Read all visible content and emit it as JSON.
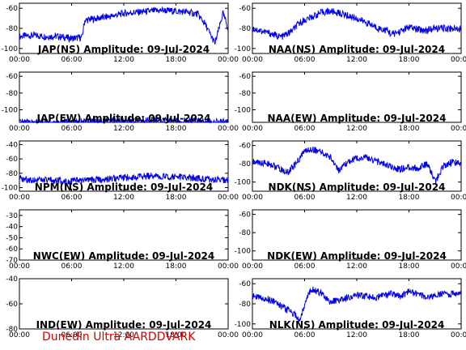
{
  "footer": {
    "credit": "Dunedin Ultra AARDDVARK"
  },
  "colors": {
    "trace": "#0000ee",
    "credit": "#d00000",
    "axis": "#000000"
  },
  "chart_data": [
    {
      "type": "line",
      "title": "JAP(NS) Amplitude: 09-Jul-2024",
      "x_ticks": [
        "00:00",
        "06:00",
        "12:00",
        "18:00",
        "00:00"
      ],
      "xlim": [
        0,
        24
      ],
      "ylim": [
        -105,
        -55
      ],
      "y_ticks": [
        -100,
        -80,
        -60
      ],
      "series": [
        {
          "x": [
            0,
            1.5,
            3,
            4.5,
            6,
            7.2,
            7.5,
            9,
            10.5,
            12,
            13.5,
            15,
            16.5,
            18,
            19.5,
            20.5,
            21.3,
            22,
            22.5,
            23.4,
            24
          ],
          "y": [
            -88,
            -87,
            -88,
            -88,
            -90,
            -89,
            -72,
            -70,
            -68,
            -65,
            -64,
            -63,
            -62,
            -63,
            -64,
            -66,
            -75,
            -87,
            -95,
            -65,
            -80
          ]
        }
      ]
    },
    {
      "type": "line",
      "title": "NAA(NS) Amplitude: 09-Jul-2024",
      "x_ticks": [
        "00:00",
        "06:00",
        "12:00",
        "18:00",
        "00:00"
      ],
      "xlim": [
        0,
        24
      ],
      "ylim": [
        -105,
        -55
      ],
      "y_ticks": [
        -100,
        -80,
        -60
      ],
      "series": [
        {
          "x": [
            0,
            2,
            3,
            3.5,
            4.5,
            5.5,
            7,
            8,
            9,
            10,
            12,
            13.5,
            14.5,
            15.5,
            16,
            17,
            18,
            19,
            20,
            21,
            22,
            24
          ],
          "y": [
            -80,
            -85,
            -88,
            -88,
            -83,
            -74,
            -68,
            -64,
            -63,
            -65,
            -70,
            -76,
            -80,
            -82,
            -86,
            -83,
            -79,
            -81,
            -82,
            -80,
            -80,
            -80
          ]
        }
      ]
    },
    {
      "type": "line",
      "title": "JAP(EW) Amplitude: 09-Jul-2024",
      "x_ticks": [
        "00:00",
        "06:00",
        "12:00",
        "18:00",
        "00:00"
      ],
      "xlim": [
        0,
        24
      ],
      "ylim": [
        -115,
        -55
      ],
      "y_ticks": [
        -100,
        -80,
        -60
      ],
      "series": [
        {
          "x": [
            0,
            4,
            8,
            12,
            16,
            20,
            24
          ],
          "y": [
            -115,
            -115,
            -114,
            -113,
            -112,
            -114,
            -115
          ]
        }
      ]
    },
    {
      "type": "line",
      "title": "NAA(EW) Amplitude: 09-Jul-2024",
      "x_ticks": [
        "00:00",
        "06:00",
        "12:00",
        "18:00",
        "00:00"
      ],
      "xlim": [
        0,
        24
      ],
      "ylim": [
        -115,
        -55
      ],
      "y_ticks": [
        -100,
        -80,
        -60
      ],
      "series": []
    },
    {
      "type": "line",
      "title": "NPM(NS) Amplitude: 09-Jul-2024",
      "x_ticks": [
        "00:00",
        "06:00",
        "12:00",
        "18:00",
        "00:00"
      ],
      "xlim": [
        0,
        24
      ],
      "ylim": [
        -105,
        -35
      ],
      "y_ticks": [
        -100,
        -80,
        -60,
        -40
      ],
      "series": [
        {
          "x": [
            0,
            3,
            6,
            9,
            12,
            15,
            18,
            21,
            24
          ],
          "y": [
            -88,
            -90,
            -91,
            -89,
            -86,
            -84,
            -85,
            -88,
            -90
          ]
        }
      ]
    },
    {
      "type": "line",
      "title": "NDK(NS) Amplitude: 09-Jul-2024",
      "x_ticks": [
        "00:00",
        "06:00",
        "12:00",
        "18:00",
        "00:00"
      ],
      "xlim": [
        0,
        24
      ],
      "ylim": [
        -110,
        -55
      ],
      "y_ticks": [
        -100,
        -80,
        -60
      ],
      "series": [
        {
          "x": [
            0,
            2,
            3,
            4,
            5,
            6,
            7,
            8,
            9,
            10,
            11,
            12,
            13,
            14,
            15,
            16,
            17,
            18,
            19,
            20,
            20.5,
            21,
            22,
            23,
            24
          ],
          "y": [
            -78,
            -80,
            -85,
            -90,
            -80,
            -66,
            -64,
            -68,
            -73,
            -88,
            -78,
            -74,
            -73,
            -76,
            -80,
            -84,
            -86,
            -84,
            -85,
            -80,
            -88,
            -100,
            -82,
            -78,
            -80
          ]
        }
      ]
    },
    {
      "type": "line",
      "title": "NWC(EW) Amplitude: 09-Jul-2024",
      "x_ticks": [
        "00:00",
        "06:00",
        "12:00",
        "18:00",
        "00:00"
      ],
      "xlim": [
        0,
        24
      ],
      "ylim": [
        -70,
        -25
      ],
      "y_ticks": [
        -70,
        -60,
        -50,
        -40,
        -30
      ],
      "series": []
    },
    {
      "type": "line",
      "title": "NDK(EW) Amplitude: 09-Jul-2024",
      "x_ticks": [
        "00:00",
        "06:00",
        "12:00",
        "18:00",
        "00:00"
      ],
      "xlim": [
        0,
        24
      ],
      "ylim": [
        -110,
        -55
      ],
      "y_ticks": [
        -100,
        -80,
        -60
      ],
      "series": []
    },
    {
      "type": "line",
      "title": "IND(EW) Amplitude: 09-Jul-2024",
      "x_ticks": [
        "00:00",
        "06:00",
        "12:00",
        "18:00",
        "00:00"
      ],
      "xlim": [
        0,
        24
      ],
      "ylim": [
        -80,
        -40
      ],
      "y_ticks": [
        -80,
        -60,
        -40
      ],
      "series": []
    },
    {
      "type": "line",
      "title": "NLK(NS) Amplitude: 09-Jul-2024",
      "x_ticks": [
        "00:00",
        "06:00",
        "12:00",
        "18:00",
        "00:00"
      ],
      "xlim": [
        0,
        24
      ],
      "ylim": [
        -105,
        -55
      ],
      "y_ticks": [
        -100,
        -80,
        -60
      ],
      "series": [
        {
          "x": [
            0,
            1,
            2,
            3,
            4,
            5,
            5.5,
            6,
            6.5,
            7,
            8,
            9,
            10,
            11,
            12,
            13,
            14,
            15,
            16,
            17,
            18,
            19,
            20,
            21,
            22,
            23,
            24
          ],
          "y": [
            -72,
            -74,
            -76,
            -80,
            -86,
            -92,
            -96,
            -80,
            -68,
            -66,
            -70,
            -78,
            -76,
            -74,
            -72,
            -72,
            -74,
            -72,
            -70,
            -72,
            -68,
            -70,
            -74,
            -72,
            -70,
            -70,
            -70
          ]
        }
      ]
    }
  ]
}
